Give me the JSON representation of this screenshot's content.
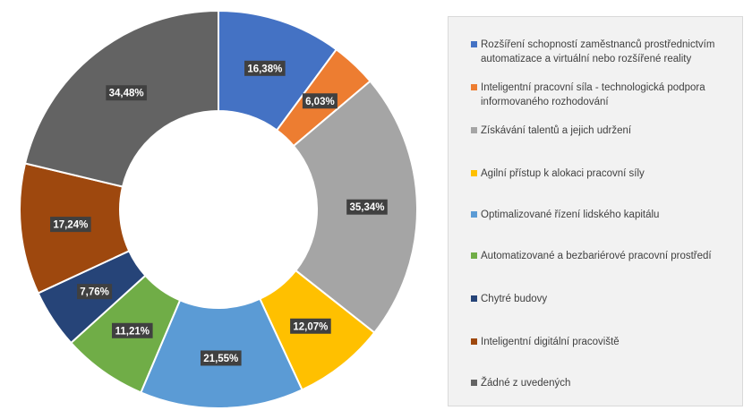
{
  "chart_data": {
    "type": "pie",
    "donut": true,
    "legend_position": "right",
    "categories": [
      "Rozšíření schopností zaměstnanců prostřednictvím automatizace a virtuální nebo rozšířené reality",
      "Inteligentní pracovní síla - technologická podpora informovaného rozhodování",
      "Získávání talentů a jejich udržení",
      "Agilní přístup k alokaci pracovní síly",
      "Optimalizované řízení lidského kapitálu",
      "Automatizované a bezbariérové pracovní prostředí",
      "Chytré budovy",
      "Inteligentní digitální pracoviště",
      "Žádné z uvedených"
    ],
    "values": [
      16.38,
      6.03,
      35.34,
      12.07,
      21.55,
      11.21,
      7.76,
      17.24,
      34.48
    ],
    "labels": [
      "16,38%",
      "6,03%",
      "35,34%",
      "12,07%",
      "21,55%",
      "11,21%",
      "7,76%",
      "17,24%",
      "34,48%"
    ],
    "colors": [
      "#4472c4",
      "#ed7d31",
      "#a5a5a5",
      "#ffc000",
      "#5b9bd5",
      "#70ad47",
      "#264478",
      "#9e480e",
      "#636363"
    ]
  }
}
